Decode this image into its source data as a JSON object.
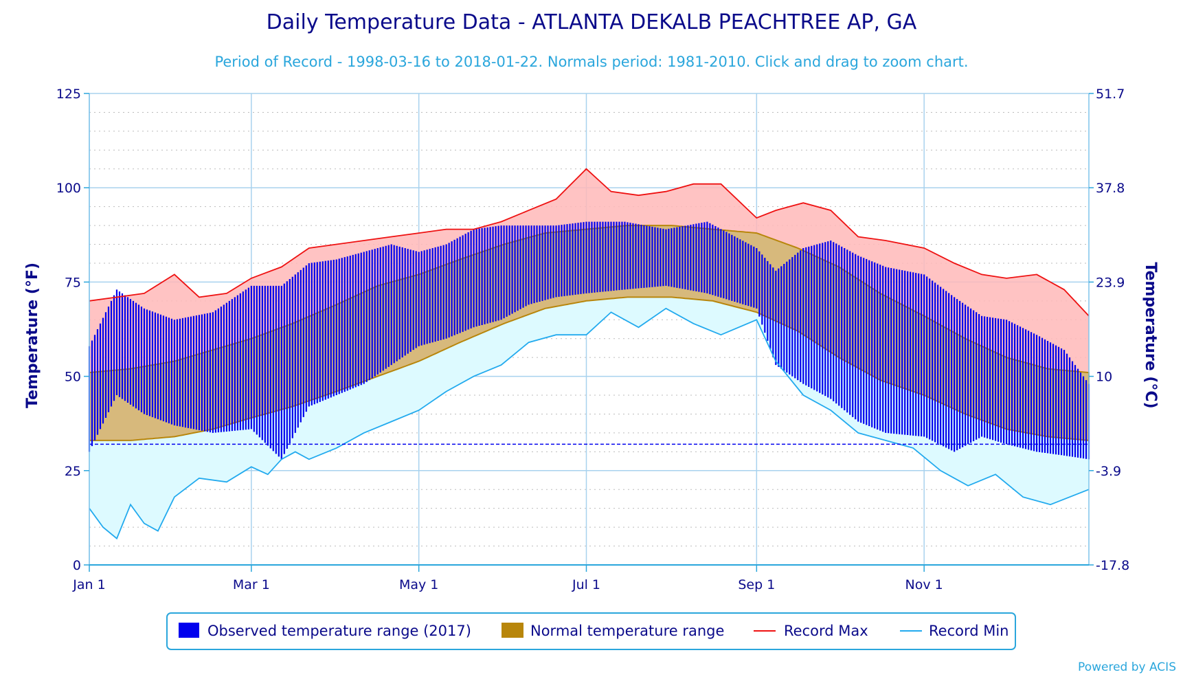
{
  "chart_data": {
    "type": "bar",
    "title": "Daily Temperature Data - ATLANTA DEKALB PEACHTREE AP, GA",
    "subtitle": "Period of Record - 1998-03-16 to 2018-01-22. Normals period: 1981-2010. Click and drag to zoom chart.",
    "ylabel": "Temperature (°F)",
    "ylabel_right": "Temperature (°C)",
    "ylim": [
      0,
      125
    ],
    "y_ticks": [
      0,
      25,
      50,
      75,
      100,
      125
    ],
    "y_ticks_right": [
      "-17.8",
      "-3.9",
      "10",
      "23.9",
      "37.8",
      "51.7"
    ],
    "x_tick_labels": [
      "Jan 1",
      "Mar 1",
      "May 1",
      "Jul 1",
      "Sep 1",
      "Nov 1"
    ],
    "x_tick_days": [
      0,
      59,
      120,
      181,
      243,
      304
    ],
    "days_in_year": 365,
    "freezing_line": 32,
    "legend_position": "bottom",
    "credit": "Powered by ACIS",
    "series": [
      {
        "name": "Observed temperature range (2017)",
        "color": "#0000ee"
      },
      {
        "name": "Normal temperature range",
        "color": "#b8860b"
      },
      {
        "name": "Record Max",
        "color": "#ee1111"
      },
      {
        "name": "Record Min",
        "color": "#22aaee"
      }
    ],
    "normal_high": {
      "days": [
        0,
        15,
        31,
        45,
        59,
        74,
        90,
        105,
        120,
        135,
        151,
        166,
        181,
        196,
        212,
        227,
        243,
        258,
        273,
        288,
        304,
        319,
        334,
        349,
        364
      ],
      "values": [
        51,
        52,
        54,
        57,
        60,
        64,
        69,
        74,
        77,
        81,
        85,
        88,
        89,
        90,
        90,
        89,
        88,
        84,
        79,
        72,
        66,
        60,
        55,
        52,
        51
      ]
    },
    "normal_low": {
      "days": [
        0,
        15,
        31,
        45,
        59,
        74,
        90,
        105,
        120,
        135,
        151,
        166,
        181,
        196,
        212,
        227,
        243,
        258,
        273,
        288,
        304,
        319,
        334,
        349,
        364
      ],
      "values": [
        33,
        33,
        34,
        36,
        39,
        42,
        46,
        50,
        54,
        59,
        64,
        68,
        70,
        71,
        71,
        70,
        67,
        62,
        55,
        49,
        45,
        40,
        36,
        34,
        33
      ]
    },
    "record_max": {
      "days": [
        0,
        10,
        20,
        31,
        40,
        50,
        59,
        70,
        80,
        90,
        100,
        110,
        120,
        130,
        140,
        150,
        160,
        170,
        181,
        190,
        200,
        210,
        220,
        230,
        243,
        250,
        260,
        270,
        280,
        290,
        304,
        315,
        325,
        334,
        345,
        355,
        364
      ],
      "values": [
        70,
        71,
        72,
        77,
        71,
        72,
        76,
        79,
        84,
        85,
        86,
        87,
        88,
        89,
        89,
        91,
        94,
        97,
        105,
        99,
        98,
        99,
        101,
        101,
        92,
        94,
        96,
        94,
        87,
        86,
        84,
        80,
        77,
        76,
        77,
        73,
        66
      ]
    },
    "record_min": {
      "days": [
        0,
        5,
        10,
        15,
        20,
        25,
        31,
        40,
        50,
        59,
        65,
        70,
        75,
        80,
        90,
        100,
        110,
        120,
        130,
        140,
        150,
        160,
        170,
        181,
        190,
        200,
        210,
        220,
        230,
        243,
        250,
        260,
        270,
        280,
        290,
        300,
        310,
        320,
        330,
        340,
        350,
        364
      ],
      "values": [
        15,
        10,
        7,
        16,
        11,
        9,
        18,
        23,
        22,
        26,
        24,
        28,
        30,
        28,
        31,
        35,
        38,
        41,
        46,
        50,
        53,
        59,
        61,
        61,
        67,
        63,
        68,
        64,
        61,
        65,
        54,
        45,
        41,
        35,
        33,
        31,
        25,
        21,
        24,
        18,
        16,
        20
      ]
    },
    "observed_2017": {
      "days": [
        0,
        10,
        20,
        31,
        45,
        59,
        70,
        80,
        90,
        100,
        110,
        120,
        130,
        140,
        150,
        160,
        170,
        181,
        195,
        210,
        225,
        243,
        250,
        260,
        270,
        280,
        290,
        304,
        315,
        325,
        334,
        345,
        355,
        364
      ],
      "highs": [
        58,
        73,
        68,
        65,
        67,
        74,
        74,
        80,
        81,
        83,
        85,
        83,
        85,
        89,
        90,
        90,
        90,
        91,
        91,
        89,
        91,
        84,
        78,
        84,
        86,
        82,
        79,
        77,
        71,
        66,
        65,
        61,
        57,
        48
      ],
      "lows": [
        30,
        45,
        40,
        37,
        35,
        36,
        28,
        42,
        45,
        48,
        53,
        58,
        60,
        63,
        65,
        69,
        71,
        72,
        73,
        74,
        72,
        68,
        53,
        48,
        44,
        38,
        35,
        34,
        30,
        34,
        32,
        30,
        29,
        28
      ]
    }
  }
}
